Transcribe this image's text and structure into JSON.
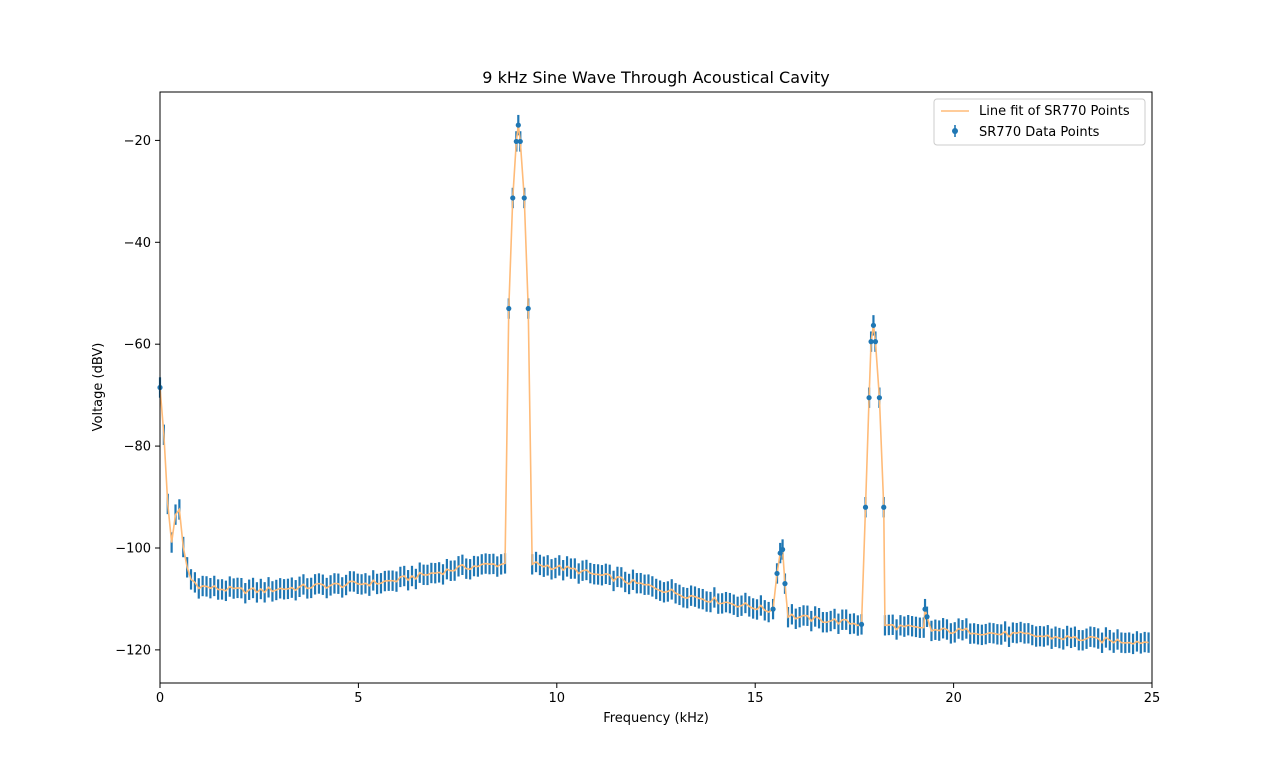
{
  "chart_data": {
    "type": "scatter",
    "title": "9 kHz Sine Wave Through Acoustical Cavity",
    "xlabel": "Frequency (kHz)",
    "ylabel": "Voltage (dBV)",
    "xlim": [
      0,
      25
    ],
    "ylim": [
      -126.5,
      -10.5
    ],
    "xticks": [
      0,
      5,
      10,
      15,
      20,
      25
    ],
    "yticks": [
      -20,
      -40,
      -60,
      -80,
      -100,
      -120
    ],
    "ytick_labels": [
      "−20",
      "−40",
      "−60",
      "−80",
      "−100",
      "−120"
    ],
    "legend_position": "top-right",
    "error_half_width_dBV": 2,
    "series": [
      {
        "name": "Line fit of SR770 Points",
        "kind": "line",
        "color": "#ffbb78"
      },
      {
        "name": "SR770 Data Points",
        "kind": "errorbar",
        "color": "#1f77b4"
      }
    ],
    "x_step": 0.0977,
    "anchors": [
      [
        0,
        -68.5
      ],
      [
        0.1,
        -78
      ],
      [
        0.2,
        -92
      ],
      [
        0.25,
        -98.5
      ],
      [
        0.3,
        -99
      ],
      [
        0.39,
        -93.5
      ],
      [
        0.44,
        -90.5
      ],
      [
        0.49,
        -92.5
      ],
      [
        0.54,
        -97.5
      ],
      [
        0.63,
        -102
      ],
      [
        0.75,
        -106
      ],
      [
        1.0,
        -107.5
      ],
      [
        1.5,
        -108
      ],
      [
        2.0,
        -108.3
      ],
      [
        2.5,
        -108.4
      ],
      [
        3.0,
        -108
      ],
      [
        3.5,
        -107.8
      ],
      [
        4.0,
        -107.4
      ],
      [
        4.5,
        -107.3
      ],
      [
        5.0,
        -107
      ],
      [
        5.5,
        -106.8
      ],
      [
        6.0,
        -106.3
      ],
      [
        6.5,
        -105.5
      ],
      [
        7.0,
        -104.8
      ],
      [
        7.5,
        -104
      ],
      [
        8.0,
        -103.5
      ],
      [
        8.5,
        -103.2
      ],
      [
        8.75,
        -103.1
      ],
      [
        9.35,
        -103
      ],
      [
        10.0,
        -103.8
      ],
      [
        10.5,
        -104.4
      ],
      [
        11.0,
        -105.3
      ],
      [
        11.5,
        -106
      ],
      [
        12.0,
        -107
      ],
      [
        12.5,
        -107.8
      ],
      [
        13.0,
        -108.8
      ],
      [
        13.5,
        -109.6
      ],
      [
        14.0,
        -110.3
      ],
      [
        14.5,
        -111
      ],
      [
        15.0,
        -111.6
      ],
      [
        15.5,
        -112.5
      ],
      [
        16.0,
        -113.5
      ],
      [
        16.5,
        -114
      ],
      [
        17.0,
        -114.3
      ],
      [
        17.5,
        -114.8
      ],
      [
        17.7,
        -115
      ],
      [
        18.3,
        -115.2
      ],
      [
        19.0,
        -115.8
      ],
      [
        19.5,
        -116.2
      ],
      [
        20.0,
        -116.3
      ],
      [
        20.5,
        -116.3
      ],
      [
        21.0,
        -116.8
      ],
      [
        21.5,
        -117
      ],
      [
        22.0,
        -117.2
      ],
      [
        22.5,
        -117.5
      ],
      [
        23.0,
        -117.7
      ],
      [
        23.5,
        -118
      ],
      [
        24.0,
        -118.2
      ],
      [
        24.5,
        -118.3
      ],
      [
        25.0,
        -118.5
      ]
    ],
    "peaks": [
      {
        "x": [
          8.79,
          8.89,
          8.98,
          9.03,
          9.08,
          9.18,
          9.28
        ],
        "y": [
          -53,
          -31.3,
          -20.2,
          -17,
          -20.2,
          -31.3,
          -53
        ]
      },
      {
        "x": [
          15.45,
          15.55,
          15.63,
          15.69,
          15.75
        ],
        "y": [
          -112,
          -105,
          -101,
          -100.3,
          -107
        ]
      },
      {
        "x": [
          17.68,
          17.78,
          17.87,
          17.92,
          17.98,
          18.03,
          18.13,
          18.24
        ],
        "y": [
          -115,
          -92,
          -70.5,
          -59.5,
          -56.3,
          -59.5,
          -70.5,
          -92
        ]
      },
      {
        "x": [
          19.28,
          19.33
        ],
        "y": [
          -112,
          -113.5
        ]
      }
    ],
    "noise_amplitude_dBV": 0.6
  }
}
